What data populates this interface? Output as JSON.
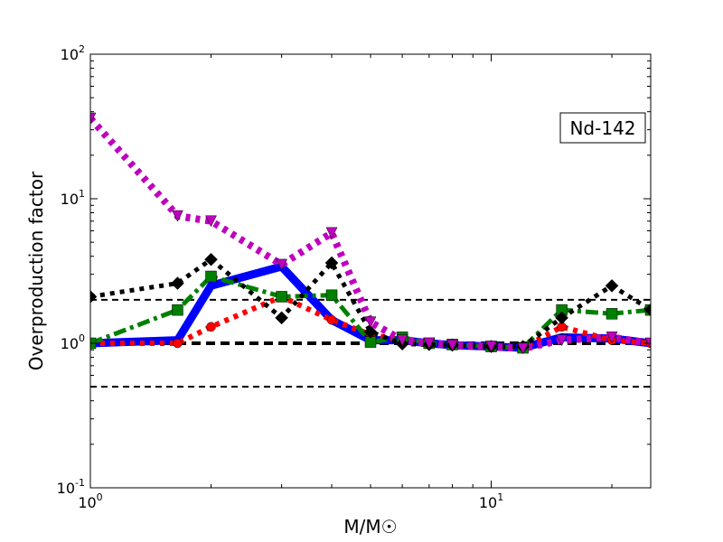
{
  "chart_data": {
    "type": "line",
    "xscale": "log",
    "yscale": "log",
    "xlim": [
      1,
      25
    ],
    "ylim": [
      0.1,
      100
    ],
    "xlabel": "M/M☉",
    "ylabel": "Overproduction factor",
    "annotation": "Nd-142",
    "x_ticks": [
      {
        "value": 1,
        "base": "10",
        "exp": "0"
      },
      {
        "value": 10,
        "base": "10",
        "exp": "1"
      }
    ],
    "y_ticks": [
      {
        "value": 0.1,
        "base": "10",
        "exp": "-1"
      },
      {
        "value": 1,
        "base": "10",
        "exp": "0"
      },
      {
        "value": 10,
        "base": "10",
        "exp": "1"
      },
      {
        "value": 100,
        "base": "10",
        "exp": "2"
      }
    ],
    "reference_lines": [
      {
        "y": 1,
        "style": "thick-dashed",
        "color": "#000000"
      },
      {
        "y": 2,
        "style": "dashed",
        "color": "#000000"
      },
      {
        "y": 0.5,
        "style": "dashed",
        "color": "#000000"
      }
    ],
    "series": [
      {
        "color": "#0000ff",
        "style": "solid",
        "marker": "none",
        "x": [
          1,
          1.65,
          2,
          3,
          4,
          5,
          6,
          7,
          8,
          10,
          12,
          15,
          20,
          25
        ],
        "y": [
          1.0,
          1.05,
          2.5,
          3.4,
          1.45,
          1.05,
          1.05,
          1.0,
          0.97,
          0.95,
          0.93,
          1.1,
          1.08,
          1.0
        ]
      },
      {
        "color": "#ff0000",
        "style": "dotted",
        "marker": "circle",
        "x": [
          1,
          1.65,
          2,
          3,
          4,
          5,
          6,
          7,
          8,
          10,
          12,
          15,
          20,
          25
        ],
        "y": [
          1.0,
          1.0,
          1.3,
          2.1,
          1.45,
          1.15,
          1.05,
          1.0,
          0.97,
          0.95,
          0.93,
          1.3,
          1.05,
          1.0
        ]
      },
      {
        "color": "#008000",
        "style": "dash-dot",
        "marker": "square",
        "x": [
          1,
          1.65,
          2,
          3,
          4,
          5,
          6,
          7,
          8,
          10,
          12,
          15,
          20,
          25
        ],
        "y": [
          1.0,
          1.7,
          2.9,
          2.1,
          2.15,
          1.02,
          1.1,
          1.0,
          0.98,
          0.95,
          0.93,
          1.7,
          1.6,
          1.7
        ]
      },
      {
        "color": "#000000",
        "style": "dotted",
        "marker": "diamond",
        "x": [
          1,
          1.65,
          2,
          3,
          4,
          5,
          6,
          7,
          8,
          10,
          12,
          15,
          20,
          25
        ],
        "y": [
          2.1,
          2.6,
          3.8,
          1.5,
          3.6,
          1.2,
          0.99,
          0.98,
          0.97,
          0.95,
          0.95,
          1.5,
          2.5,
          1.7
        ]
      },
      {
        "color": "#bf00bf",
        "style": "dotted",
        "marker": "triangle-down",
        "x": [
          1,
          1.65,
          2,
          3,
          4,
          5,
          6,
          7,
          8,
          10,
          12,
          15,
          20,
          25
        ],
        "y": [
          36,
          7.6,
          7.0,
          3.5,
          5.8,
          1.4,
          1.05,
          1.0,
          0.97,
          0.95,
          0.92,
          1.05,
          1.1,
          1.0
        ]
      }
    ]
  }
}
